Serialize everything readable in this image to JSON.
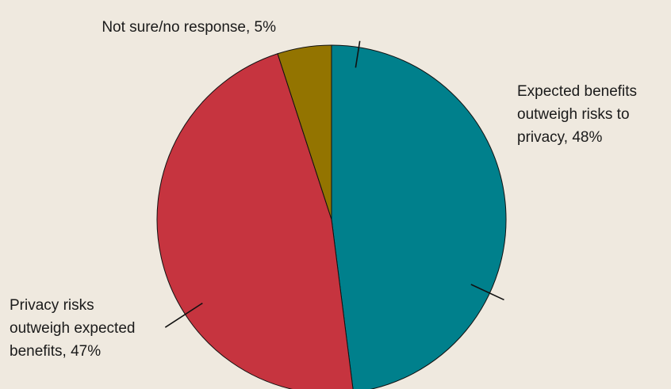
{
  "chart_data": {
    "type": "pie",
    "title": "",
    "start_angle_deg": 0,
    "direction": "clockwise",
    "slices": [
      {
        "label_lines": [
          "Expected benefits",
          "outweigh risks to",
          "privacy, 48%"
        ],
        "value": 48,
        "color": "#00808c"
      },
      {
        "label_lines": [
          "Privacy risks",
          "outweigh expected",
          "benefits, 47%"
        ],
        "value": 47,
        "color": "#c6343f"
      },
      {
        "label_lines": [
          "Not sure/no response, 5%"
        ],
        "value": 5,
        "color": "#937400"
      }
    ]
  }
}
